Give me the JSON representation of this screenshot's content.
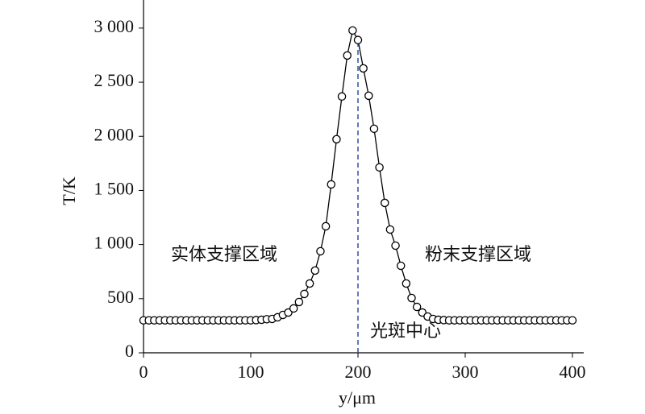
{
  "chart_data": {
    "type": "line",
    "x_label": "y/μm",
    "y_label": "T/K",
    "x": [
      0,
      5,
      10,
      15,
      20,
      25,
      30,
      35,
      40,
      45,
      50,
      55,
      60,
      65,
      70,
      75,
      80,
      85,
      90,
      95,
      100,
      105,
      110,
      115,
      120,
      125,
      130,
      135,
      140,
      145,
      150,
      155,
      160,
      165,
      170,
      175,
      180,
      185,
      190,
      195,
      200,
      205,
      210,
      215,
      220,
      225,
      230,
      235,
      240,
      245,
      250,
      255,
      260,
      265,
      270,
      275,
      280,
      285,
      290,
      295,
      300,
      305,
      310,
      315,
      320,
      325,
      330,
      335,
      340,
      345,
      350,
      355,
      360,
      365,
      370,
      375,
      380,
      385,
      390,
      395,
      400
    ],
    "series": [
      {
        "color": "#000000",
        "values": [
          300,
          300,
          300,
          300,
          300,
          300,
          300,
          300,
          300,
          300,
          300,
          300,
          300,
          300,
          300,
          300,
          300,
          300,
          300,
          300,
          300,
          302,
          305,
          310,
          313,
          328,
          350,
          372,
          410,
          469,
          544,
          640,
          760,
          938,
          1169,
          1556,
          1973,
          2368,
          2747,
          2978,
          2890,
          2628,
          2375,
          2070,
          1713,
          1385,
          1139,
          990,
          804,
          640,
          506,
          424,
          372,
          335,
          313,
          305,
          302,
          300,
          300,
          300,
          300,
          300,
          300,
          300,
          300,
          300,
          300,
          300,
          300,
          300,
          300,
          300,
          300,
          300,
          300,
          300,
          300,
          300,
          300,
          300,
          300
        ]
      }
    ],
    "xlim": [
      0,
      400
    ],
    "ylim": [
      0,
      3200
    ],
    "xticks": [
      0,
      100,
      200,
      300,
      400
    ],
    "yticks": [
      0,
      500,
      {
        "value": 1000,
        "label": "1 000"
      },
      {
        "value": 1500,
        "label": "1 500"
      },
      {
        "value": 2000,
        "label": "2 000"
      },
      {
        "value": 2500,
        "label": "2 500"
      },
      {
        "value": 3000,
        "label": "3 000"
      }
    ],
    "vline": {
      "x": 200,
      "color": "#2f4fa8"
    },
    "annotations": [
      "实体支撑区域",
      "粉末支撑区域",
      "光斑中心"
    ],
    "grid": false
  }
}
